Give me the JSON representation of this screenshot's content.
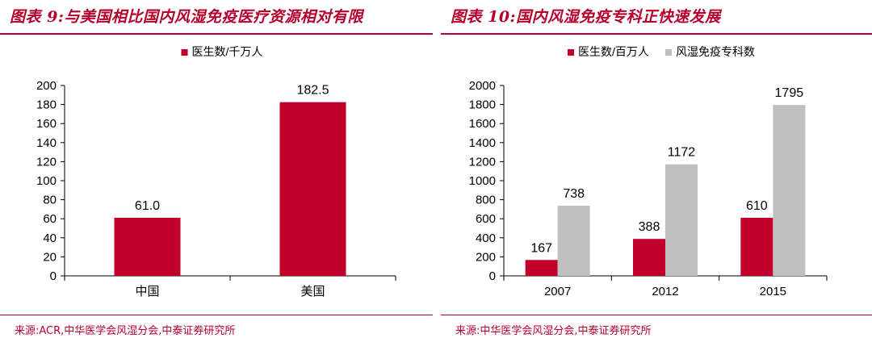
{
  "colors": {
    "accent": "#b5002c",
    "bar_red": "#c0002a",
    "bar_grey": "#c0c0c0"
  },
  "panels": [
    {
      "title": "图表 9:与美国相比国内风湿免疫医疗资源相对有限",
      "source": "来源:ACR,中华医学会风湿分会,中泰证券研究所"
    },
    {
      "title": "图表 10:国内风湿免疫专科正快速发展",
      "source": "来源:中华医学会风湿分会,中泰证券研究所"
    }
  ],
  "chart_data": [
    {
      "type": "bar",
      "categories": [
        "中国",
        "美国"
      ],
      "series": [
        {
          "name": "医生数/千万人",
          "values": [
            61.0,
            182.5
          ],
          "labels": [
            "61.0",
            "182.5"
          ],
          "color": "#c0002a"
        }
      ],
      "yticks": [
        "0",
        "20",
        "40",
        "60",
        "80",
        "100",
        "120",
        "140",
        "160",
        "180",
        "200"
      ],
      "ylim": [
        0,
        200
      ],
      "legend": "top-center",
      "grid": false
    },
    {
      "type": "bar",
      "categories": [
        "2007",
        "2012",
        "2015"
      ],
      "series": [
        {
          "name": "医生数/百万人",
          "values": [
            167,
            388,
            610
          ],
          "labels": [
            "167",
            "388",
            "610"
          ],
          "color": "#c0002a"
        },
        {
          "name": "风湿免疫专科数",
          "values": [
            738,
            1172,
            1795
          ],
          "labels": [
            "738",
            "1172",
            "1795"
          ],
          "color": "#c0c0c0"
        }
      ],
      "yticks": [
        "0",
        "200",
        "400",
        "600",
        "800",
        "1000",
        "1200",
        "1400",
        "1600",
        "1800",
        "2000"
      ],
      "ylim": [
        0,
        2000
      ],
      "legend": "top-center",
      "grid": false
    }
  ]
}
